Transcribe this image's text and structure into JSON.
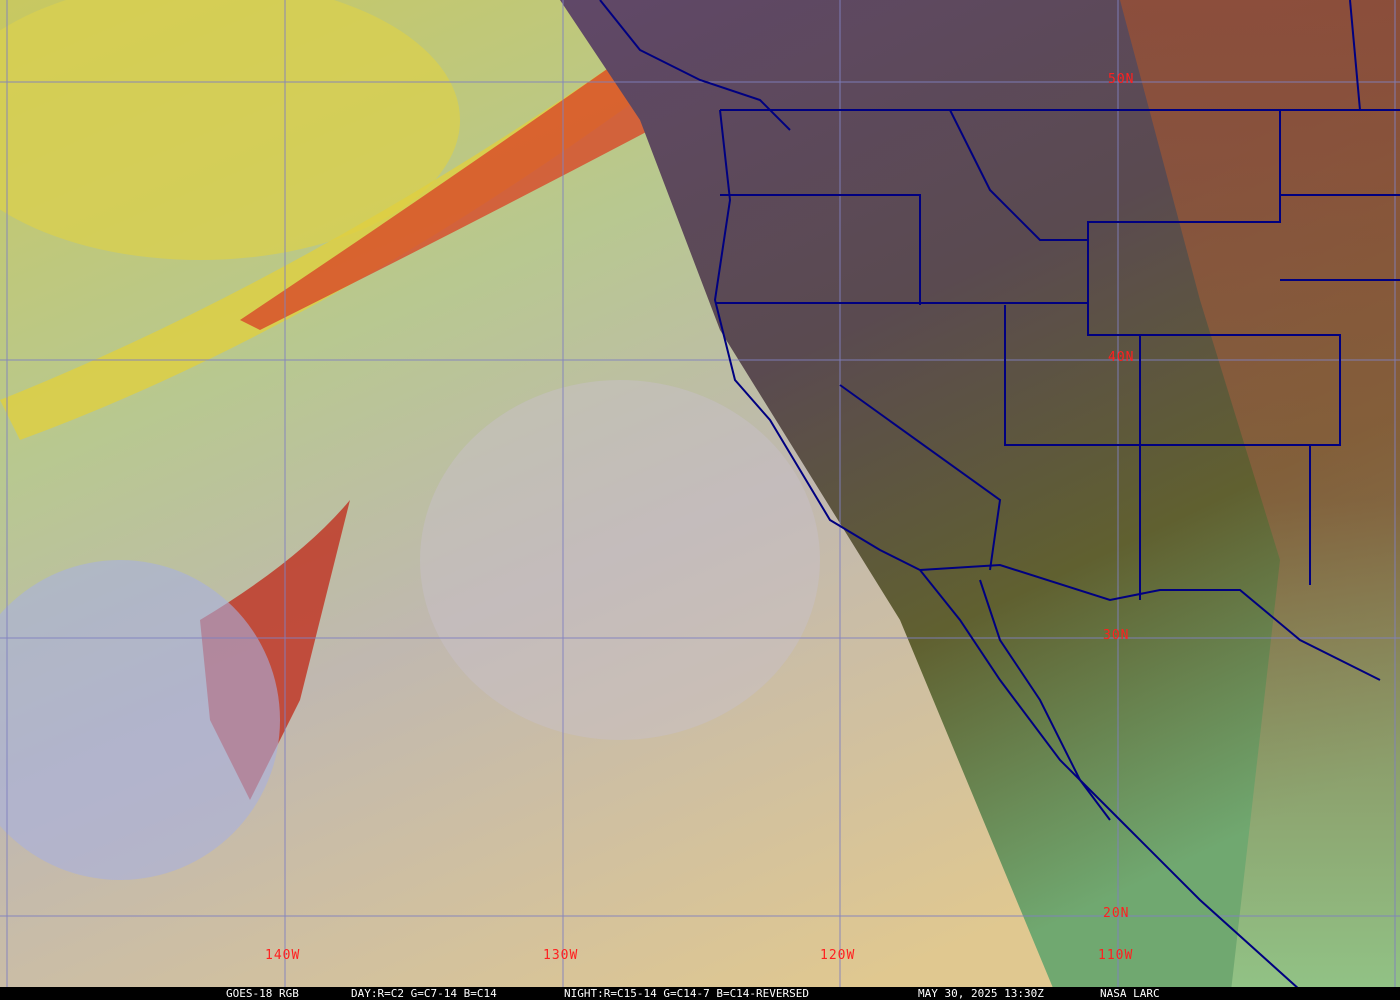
{
  "map": {
    "satellite": "GOES-18",
    "product": "RGB",
    "day_recipe": "DAY:R=C2 G=C7-14 B=C14",
    "night_recipe": "NIGHT:R=C15-14 G=C14-7 B=C14-REVERSED",
    "timestamp": "MAY 30, 2025 13:30Z",
    "credit": "NASA LARC",
    "title_text": "GOES-18 RGB",
    "lat_labels": [
      "50N",
      "40N",
      "30N",
      "20N"
    ],
    "lon_labels": [
      "140W",
      "130W",
      "120W",
      "110W"
    ],
    "colors": {
      "grid": "#8080c0",
      "borders": "#000080",
      "labels": "#ff2020",
      "footer_bg": "#000000",
      "footer_text": "#ffffff"
    }
  }
}
